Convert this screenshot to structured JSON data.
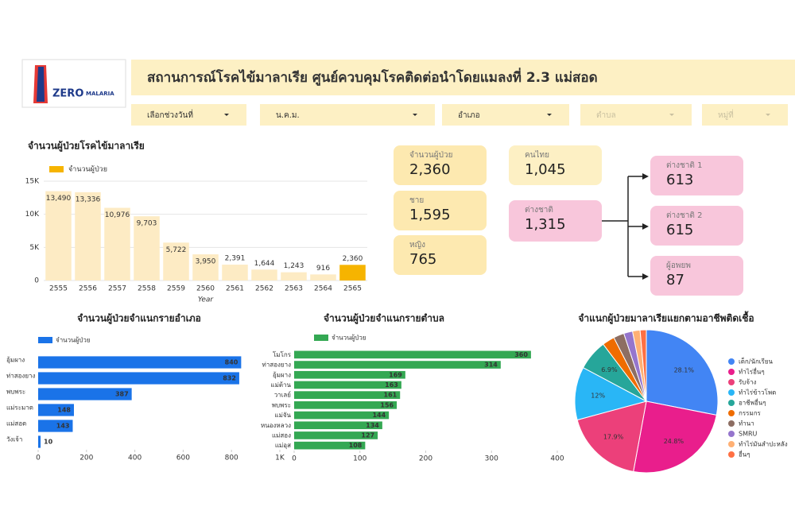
{
  "header": {
    "title": "สถานการณ์โรคไข้มาลาเรีย ศูนย์ควบคุมโรคติดต่อนำโดยแมลงที่ 2.3 แม่สอด",
    "logo": [
      "ZERO",
      "MALARIA"
    ]
  },
  "filters": [
    "เลือกช่วงวันที่",
    "น.ค.ม.",
    "อำเภอ",
    "ตำบล",
    "หมู่ที่"
  ],
  "cards": [
    {
      "label": "จำนวนผู้ป่วย",
      "value": "2,360"
    },
    {
      "label": "ชาย",
      "value": "1,595"
    },
    {
      "label": "หญิง",
      "value": "765"
    },
    {
      "label": "คนไทย",
      "value": "1,045"
    },
    {
      "label": "ต่างชาติ",
      "value": "1,315"
    },
    {
      "label": "ต่างชาติ 1",
      "value": "613"
    },
    {
      "label": "ต่างชาติ 2",
      "value": "615"
    },
    {
      "label": "ผู้อพยพ",
      "value": "87"
    }
  ],
  "chart_data": [
    {
      "type": "bar",
      "title": "จำนวนผู้ป่วยโรคไข้มาลาเรีย",
      "x_label": "Year",
      "categories": [
        "2555",
        "2556",
        "2557",
        "2558",
        "2559",
        "2560",
        "2561",
        "2562",
        "2563",
        "2564",
        "2565"
      ],
      "series": [
        {
          "name": "จำนวนผู้ป่วย",
          "color": "#f6b400",
          "colors": [
            "#fdebc4",
            "#fdebc4",
            "#fdebc4",
            "#fdebc4",
            "#fdebc4",
            "#fdebc4",
            "#fdebc4",
            "#fdebc4",
            "#fdebc4",
            "#fdebc4",
            "#f6b400"
          ],
          "values": [
            13490,
            13336,
            10976,
            9703,
            5722,
            3950,
            2391,
            1644,
            1243,
            916,
            2360
          ],
          "value_labels": [
            "13,490",
            "13,336",
            "10,976",
            "9,703",
            "5,722",
            "3,950",
            "2,391",
            "1,644",
            "1,243",
            "916",
            "2,360"
          ]
        }
      ],
      "ylim": [
        0,
        15000
      ],
      "yticks": [
        0,
        {
          "value": 5000,
          "label": "5K"
        },
        {
          "value": 10000,
          "label": "10K"
        },
        {
          "value": 15000,
          "label": "15K"
        }
      ],
      "grid": true
    },
    {
      "type": "barh",
      "title": "จำนวนผู้ป่วยจำแนกรายอำเภอ",
      "categories": [
        "อุ้มผาง",
        "ท่าสองยาง",
        "พบพระ",
        "แม่ระมาด",
        "แม่สอด",
        "วังเจ้า"
      ],
      "series": [
        {
          "name": "จำนวนผู้ป่วย",
          "color": "#1a73e8",
          "values": [
            840,
            832,
            387,
            148,
            143,
            10
          ]
        }
      ],
      "xlim": [
        0,
        1000
      ],
      "xticks": [
        0,
        200,
        400,
        600,
        800,
        {
          "value": 1000,
          "label": "1K"
        }
      ]
    },
    {
      "type": "barh",
      "title": "จำนวนผู้ป่วยจำแนกรายตำบล",
      "categories": [
        "โมโกร",
        "ท่าสองยาง",
        "อุ้มผาง",
        "แม่ต้าน",
        "วาเลย์",
        "พบพระ",
        "แม่จัน",
        "หนองหลวง",
        "แม่สอง",
        "แม่อุส"
      ],
      "series": [
        {
          "name": "จำนวนผู้ป่วย",
          "color": "#34a853",
          "values": [
            360,
            314,
            169,
            163,
            161,
            156,
            144,
            134,
            127,
            108
          ]
        }
      ],
      "xlim": [
        0,
        400
      ],
      "xticks": [
        0,
        100,
        200,
        300,
        400
      ]
    },
    {
      "type": "pie",
      "title": "จำแนกผู้ป่วยมาลาเรียแยกตามอาชีพติดเชื้อ",
      "categories": [
        "เด็ก/นักเรียน",
        "ทำไร่อื่นๆ",
        "รับจ้าง",
        "ทำไร่ข้าวโพด",
        "อาชีพอื่นๆ",
        "กรรมกร",
        "ทำนา",
        "SMRU",
        "ทำไร่มันสำปะหลัง",
        "อื่นๆ"
      ],
      "values": [
        28.1,
        24.8,
        17.9,
        12,
        6.9,
        2.8,
        2.4,
        2,
        1.7,
        1.4
      ],
      "value_labels": [
        "28.1%",
        "24.8%",
        "17.9%",
        "12%",
        "6.9%",
        null,
        null,
        null,
        null,
        null
      ],
      "colors": [
        "#4285f4",
        "#e91e8c",
        "#ec407a",
        "#29b6f6",
        "#26a69a",
        "#ef6c00",
        "#8d6e63",
        "#9575cd",
        "#ffb074",
        "#ff7043"
      ]
    }
  ]
}
